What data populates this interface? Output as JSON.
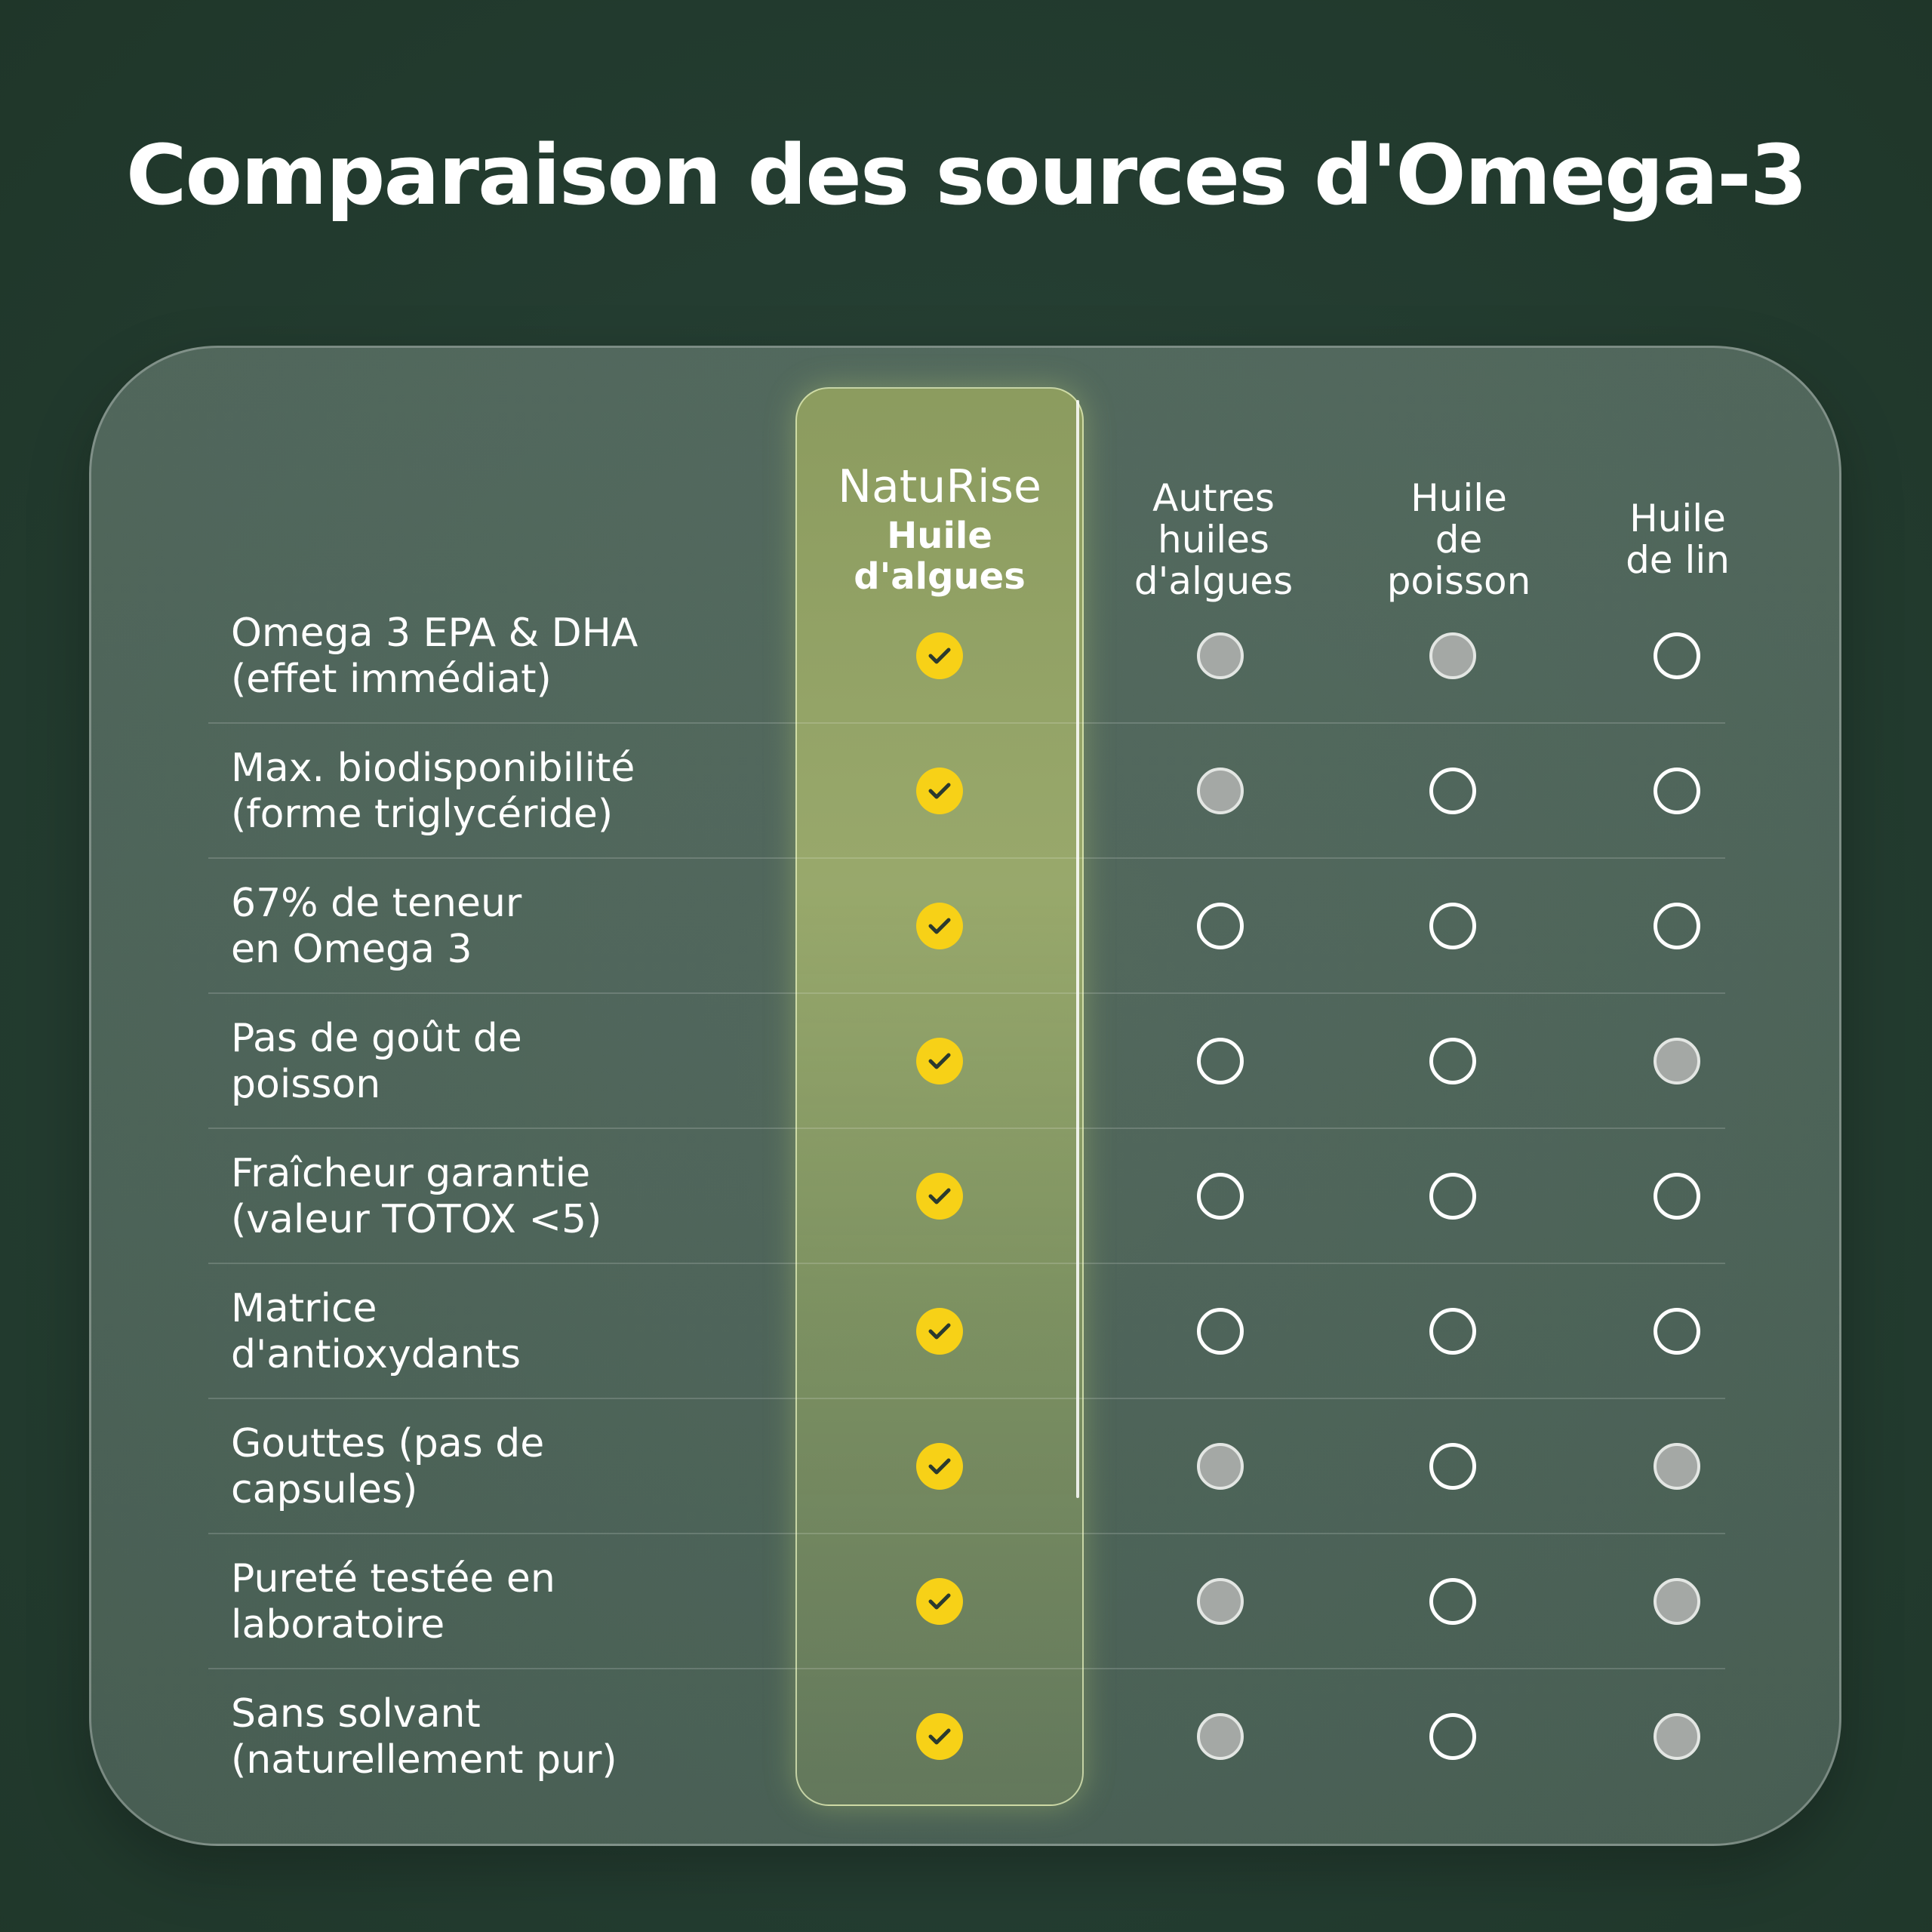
{
  "title": "Comparaison des sources d'Omega-3",
  "columns": {
    "brand_name": "NatuRise",
    "brand_product": "Huile d'algues",
    "col2_lines": [
      "Autres",
      "huiles",
      "d'algues"
    ],
    "col3_lines": [
      "Huile",
      "de",
      "poisson"
    ],
    "col4_lines": [
      "Huile",
      "de lin"
    ]
  },
  "rows": [
    {
      "label_lines": [
        "Omega 3 EPA & DHA",
        "(effet immédiat)"
      ],
      "marks": [
        "yes",
        "partial",
        "partial",
        "no"
      ]
    },
    {
      "label_lines": [
        "Max. biodisponibilité",
        "(forme triglycéride)"
      ],
      "marks": [
        "yes",
        "partial",
        "no",
        "no"
      ]
    },
    {
      "label_lines": [
        "67% de teneur",
        "en Omega 3"
      ],
      "marks": [
        "yes",
        "no",
        "no",
        "no"
      ]
    },
    {
      "label_lines": [
        "Pas de goût de",
        "poisson"
      ],
      "marks": [
        "yes",
        "no",
        "no",
        "partial"
      ]
    },
    {
      "label_lines": [
        "Fraîcheur garantie",
        "(valeur TOTOX <5)"
      ],
      "marks": [
        "yes",
        "no",
        "no",
        "no"
      ]
    },
    {
      "label_lines": [
        "Matrice",
        "d'antioxydants"
      ],
      "marks": [
        "yes",
        "no",
        "no",
        "no"
      ]
    },
    {
      "label_lines": [
        "Gouttes (pas de",
        "capsules)"
      ],
      "marks": [
        "yes",
        "partial",
        "no",
        "partial"
      ]
    },
    {
      "label_lines": [
        "Pureté testée en",
        "laboratoire"
      ],
      "marks": [
        "yes",
        "partial",
        "no",
        "partial"
      ]
    },
    {
      "label_lines": [
        "Sans solvant",
        "(naturellement pur)"
      ],
      "marks": [
        "yes",
        "partial",
        "no",
        "partial"
      ]
    }
  ],
  "mark_legend": {
    "yes": "yellow-check-icon",
    "partial": "grey-filled-circle-icon",
    "no": "empty-circle-icon"
  },
  "colors": {
    "background": "#243d31",
    "highlight": "#a5b46e",
    "check": "#f7d117"
  }
}
